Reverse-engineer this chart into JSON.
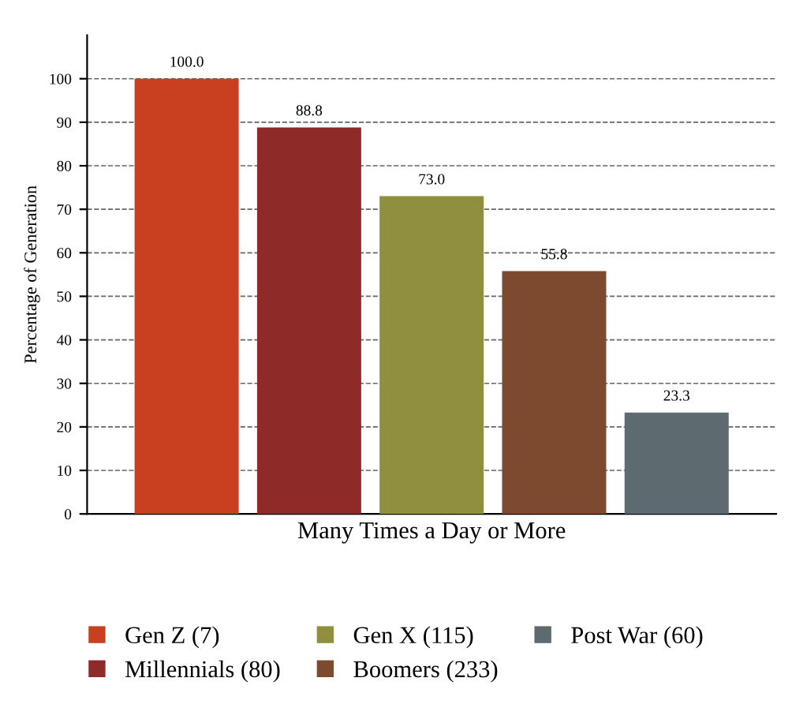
{
  "chart_data": {
    "type": "bar",
    "ylabel": "Percentage of Generation",
    "categories": [
      "Many Times a Day or More"
    ],
    "ylim": [
      0,
      110
    ],
    "yticks": [
      0,
      10,
      20,
      30,
      40,
      50,
      60,
      70,
      80,
      90,
      100
    ],
    "grid": "y",
    "legend": "bottom",
    "series": [
      {
        "name": "Gen Z (7)",
        "color": "#c8401f",
        "values": [
          100.0
        ],
        "value_labels": [
          "100.0"
        ]
      },
      {
        "name": "Millennials (80)",
        "color": "#8e2a27",
        "values": [
          88.8
        ],
        "value_labels": [
          "88.8"
        ]
      },
      {
        "name": "Gen X (115)",
        "color": "#8f8f3e",
        "values": [
          73.0
        ],
        "value_labels": [
          "73.0"
        ]
      },
      {
        "name": "Boomers (233)",
        "color": "#7d4a30",
        "values": [
          55.8
        ],
        "value_labels": [
          "55.8"
        ]
      },
      {
        "name": "Post War (60)",
        "color": "#5d6a70",
        "values": [
          23.3
        ],
        "value_labels": [
          "23.3"
        ]
      }
    ]
  }
}
